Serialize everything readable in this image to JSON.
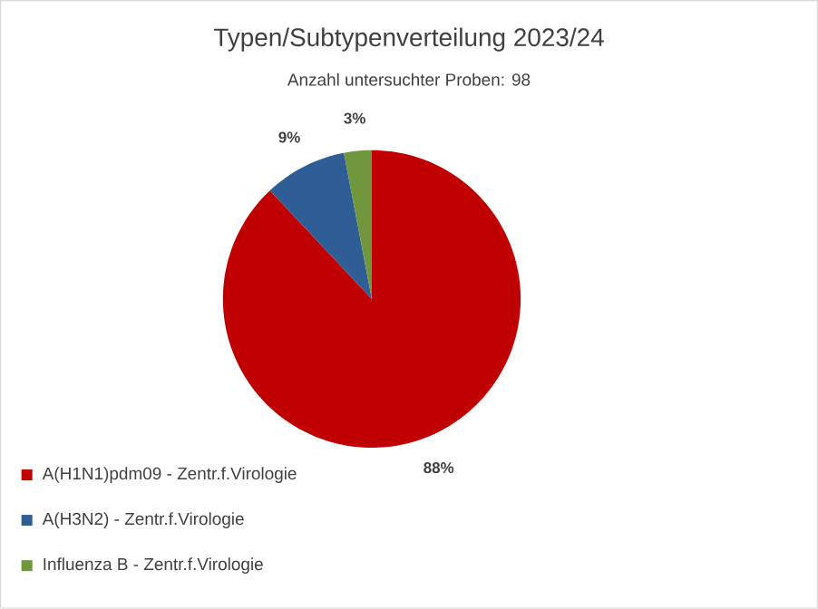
{
  "chart_data": {
    "type": "pie",
    "title": "Typen/Subtypenverteilung 2023/24",
    "subtitle": "Anzahl untersuchter Proben: 98",
    "categories": [
      "A(H1N1)pdm09 - Zentr.f.Virologie",
      "A(H3N2)  - Zentr.f.Virologie",
      "Influenza B - Zentr.f.Virologie"
    ],
    "values": [
      88,
      9,
      3
    ],
    "colors": [
      "#c00000",
      "#2f5d95",
      "#71973c"
    ],
    "value_labels": [
      "88%",
      "9%",
      "3%"
    ],
    "legend": "bottom left"
  }
}
